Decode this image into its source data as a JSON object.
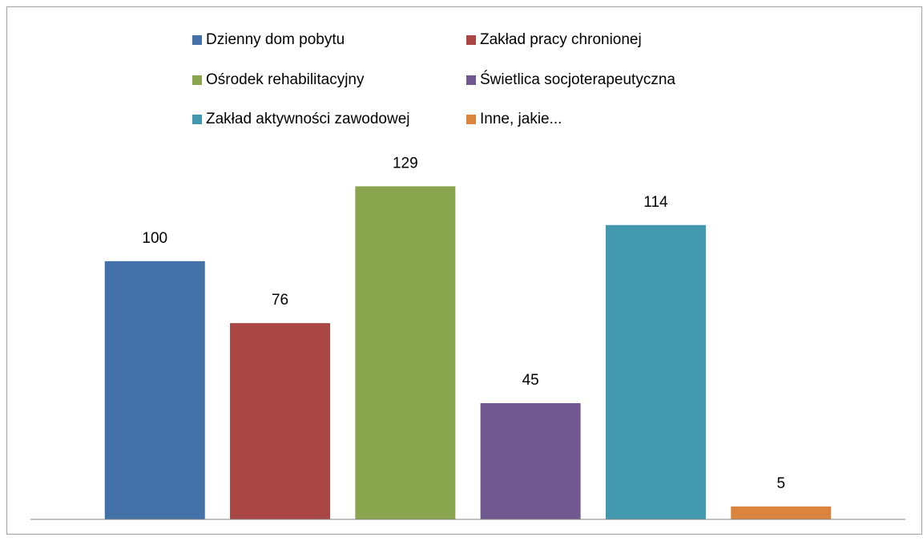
{
  "chart_data": {
    "type": "bar",
    "series": [
      {
        "name": "Dzienny dom pobytu",
        "color": "#4472a8",
        "values": [
          100
        ]
      },
      {
        "name": "Zakład pracy chronionej",
        "color": "#aa4644",
        "values": [
          76
        ]
      },
      {
        "name": "Ośrodek rehabilitacyjny",
        "color": "#89a54e",
        "values": [
          129
        ]
      },
      {
        "name": "Świetlica socjoterapeutyczna",
        "color": "#71588f",
        "values": [
          45
        ]
      },
      {
        "name": "Zakład aktywności zawodowej",
        "color": "#4198af",
        "values": [
          114
        ]
      },
      {
        "name": "Inne, jakie...",
        "color": "#db843d",
        "values": [
          5
        ]
      }
    ],
    "ylim": [
      0,
      140
    ]
  }
}
